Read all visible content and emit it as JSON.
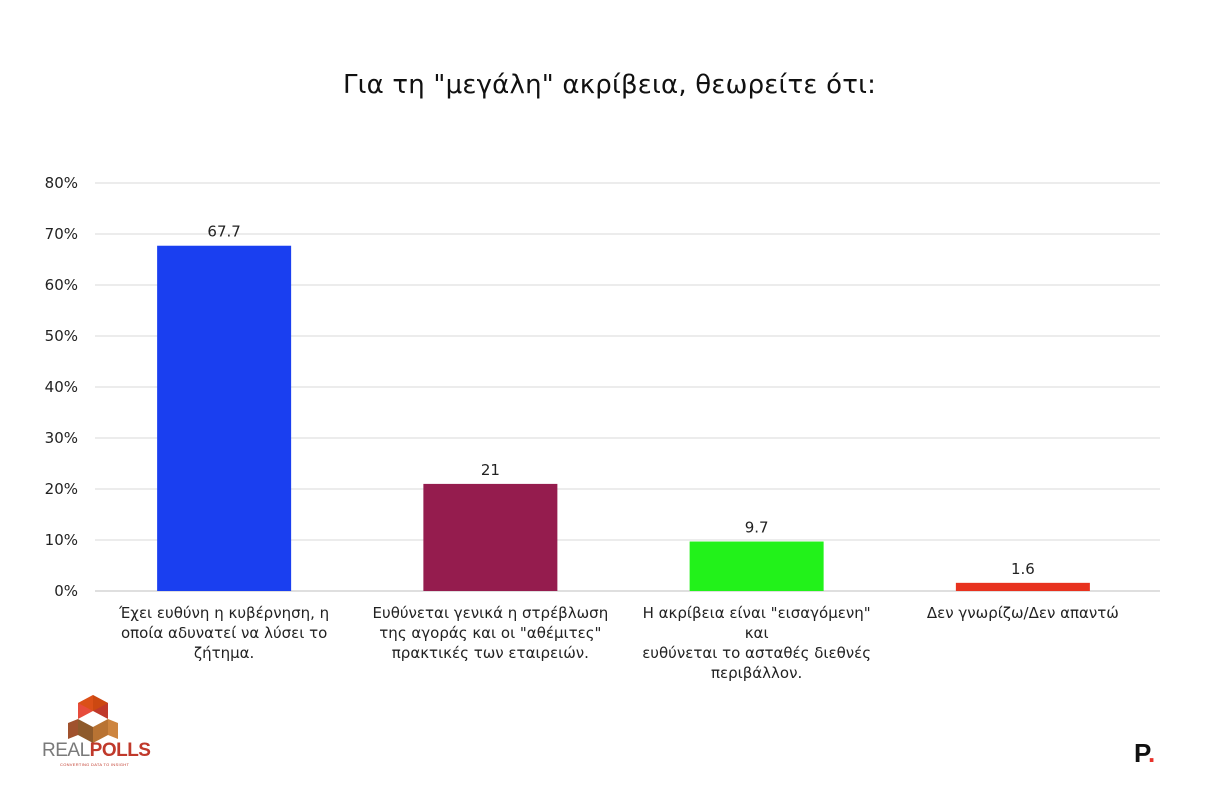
{
  "chart_data": {
    "type": "bar",
    "title": "Για τη \"μεγάλη\" ακρίβεια, θεωρείτε ότι:",
    "xlabel": "",
    "ylabel": "",
    "ylim": [
      0,
      80
    ],
    "yticks": [
      "0%",
      "10%",
      "20%",
      "30%",
      "40%",
      "50%",
      "60%",
      "70%",
      "80%"
    ],
    "grid": true,
    "categories": [
      [
        "Έχει ευθύνη  η κυβέρνηση,  η",
        "οποία αδυνατεί να λύσει το",
        "ζήτημα."
      ],
      [
        "Ευθύνεται γενικά η στρέβλωση",
        "της αγοράς και οι \"αθέμιτες\"",
        "πρακτικές των εταιρειών."
      ],
      [
        "Η ακρίβεια είναι \"εισαγόμενη\"  και",
        "ευθύνεται  το ασταθές  διεθνές",
        "περιβάλλον."
      ],
      [
        "Δεν γνωρίζω/Δεν απαντώ"
      ]
    ],
    "values": [
      67.7,
      21,
      9.7,
      1.6
    ],
    "data_labels": [
      "67.7",
      "21",
      "9.7",
      "1.6"
    ],
    "colors": [
      "#1a3ff0",
      "#951c4e",
      "#22f21a",
      "#e8321e"
    ]
  },
  "branding": {
    "logo_text_left": "REAL",
    "logo_text_right": "POLLS",
    "logo_tagline": "CONVERTING DATA TO INSIGHT",
    "publisher_mark": "P",
    "publisher_dot": "."
  }
}
